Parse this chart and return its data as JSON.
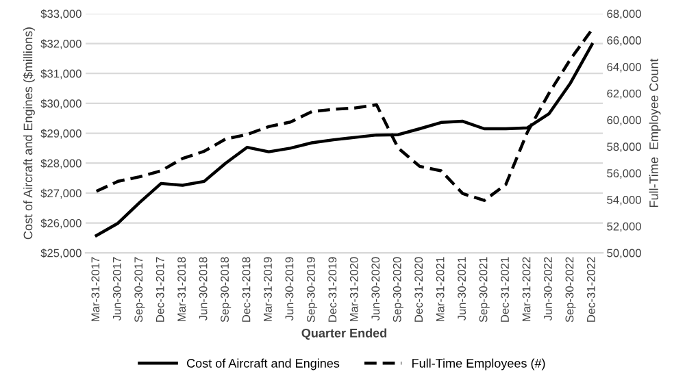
{
  "chart_data": {
    "type": "line",
    "xlabel": "Quarter Ended",
    "ylabel": "Cost of Aircraft and Engines ($millions)",
    "y2label": "Full-Time  Employee Count",
    "categories": [
      "Mar-31-2017",
      "Jun-30-2017",
      "Sep-30-2017",
      "Dec-31-2017",
      "Mar-31-2018",
      "Jun-30-2018",
      "Sep-30-2018",
      "Dec-31-2018",
      "Mar-31-2019",
      "Jun-30-2019",
      "Sep-30-2019",
      "Dec-31-2019",
      "Mar-31-2020",
      "Jun-30-2020",
      "Sep-30-2020",
      "Dec-31-2020",
      "Mar-31-2021",
      "Jun-30-2021",
      "Sep-30-2021",
      "Dec-31-2021",
      "Mar-31-2022",
      "Jun-30-2022",
      "Sep-30-2022",
      "Dec-31-2022"
    ],
    "series": [
      {
        "name": "Cost of Aircraft and Engines",
        "color": "#000000",
        "line_style": "solid",
        "values": [
          25580,
          25990,
          26680,
          27320,
          27260,
          27390,
          28000,
          28530,
          28380,
          28500,
          28680,
          28780,
          28860,
          28940,
          28950,
          29150,
          29360,
          29400,
          29150,
          29150,
          29180,
          29650,
          30680,
          31970
        ]
      },
      {
        "name": "Full-Time Employees (#)",
        "color": "#000000",
        "line_style": "dashed",
        "axis": "y2",
        "values": [
          54630,
          55380,
          55720,
          56170,
          57100,
          57640,
          58570,
          58910,
          59500,
          59840,
          60630,
          60800,
          60900,
          61140,
          57890,
          56510,
          56170,
          54460,
          53940,
          55140,
          59080,
          62000,
          64570,
          66800
        ]
      }
    ],
    "ylim": [
      25000,
      33000
    ],
    "yticks": [
      {
        "value": 25000,
        "label": "$25,000"
      },
      {
        "value": 26000,
        "label": "$26,000"
      },
      {
        "value": 27000,
        "label": "$27,000"
      },
      {
        "value": 28000,
        "label": "$28,000"
      },
      {
        "value": 29000,
        "label": "$29,000"
      },
      {
        "value": 30000,
        "label": "$30,000"
      },
      {
        "value": 31000,
        "label": "$31,000"
      },
      {
        "value": 32000,
        "label": "$32,000"
      },
      {
        "value": 33000,
        "label": "$33,000"
      }
    ],
    "y2lim": [
      50000,
      68000
    ],
    "y2ticks": [
      {
        "value": 50000,
        "label": "50,000"
      },
      {
        "value": 52000,
        "label": "52,000"
      },
      {
        "value": 54000,
        "label": "54,000"
      },
      {
        "value": 56000,
        "label": "56,000"
      },
      {
        "value": 58000,
        "label": "58,000"
      },
      {
        "value": 60000,
        "label": "60,000"
      },
      {
        "value": 62000,
        "label": "62,000"
      },
      {
        "value": 64000,
        "label": "64,000"
      },
      {
        "value": 66000,
        "label": "66,000"
      },
      {
        "value": 68000,
        "label": "68,000"
      }
    ],
    "grid": "y",
    "legend": "bottom"
  }
}
